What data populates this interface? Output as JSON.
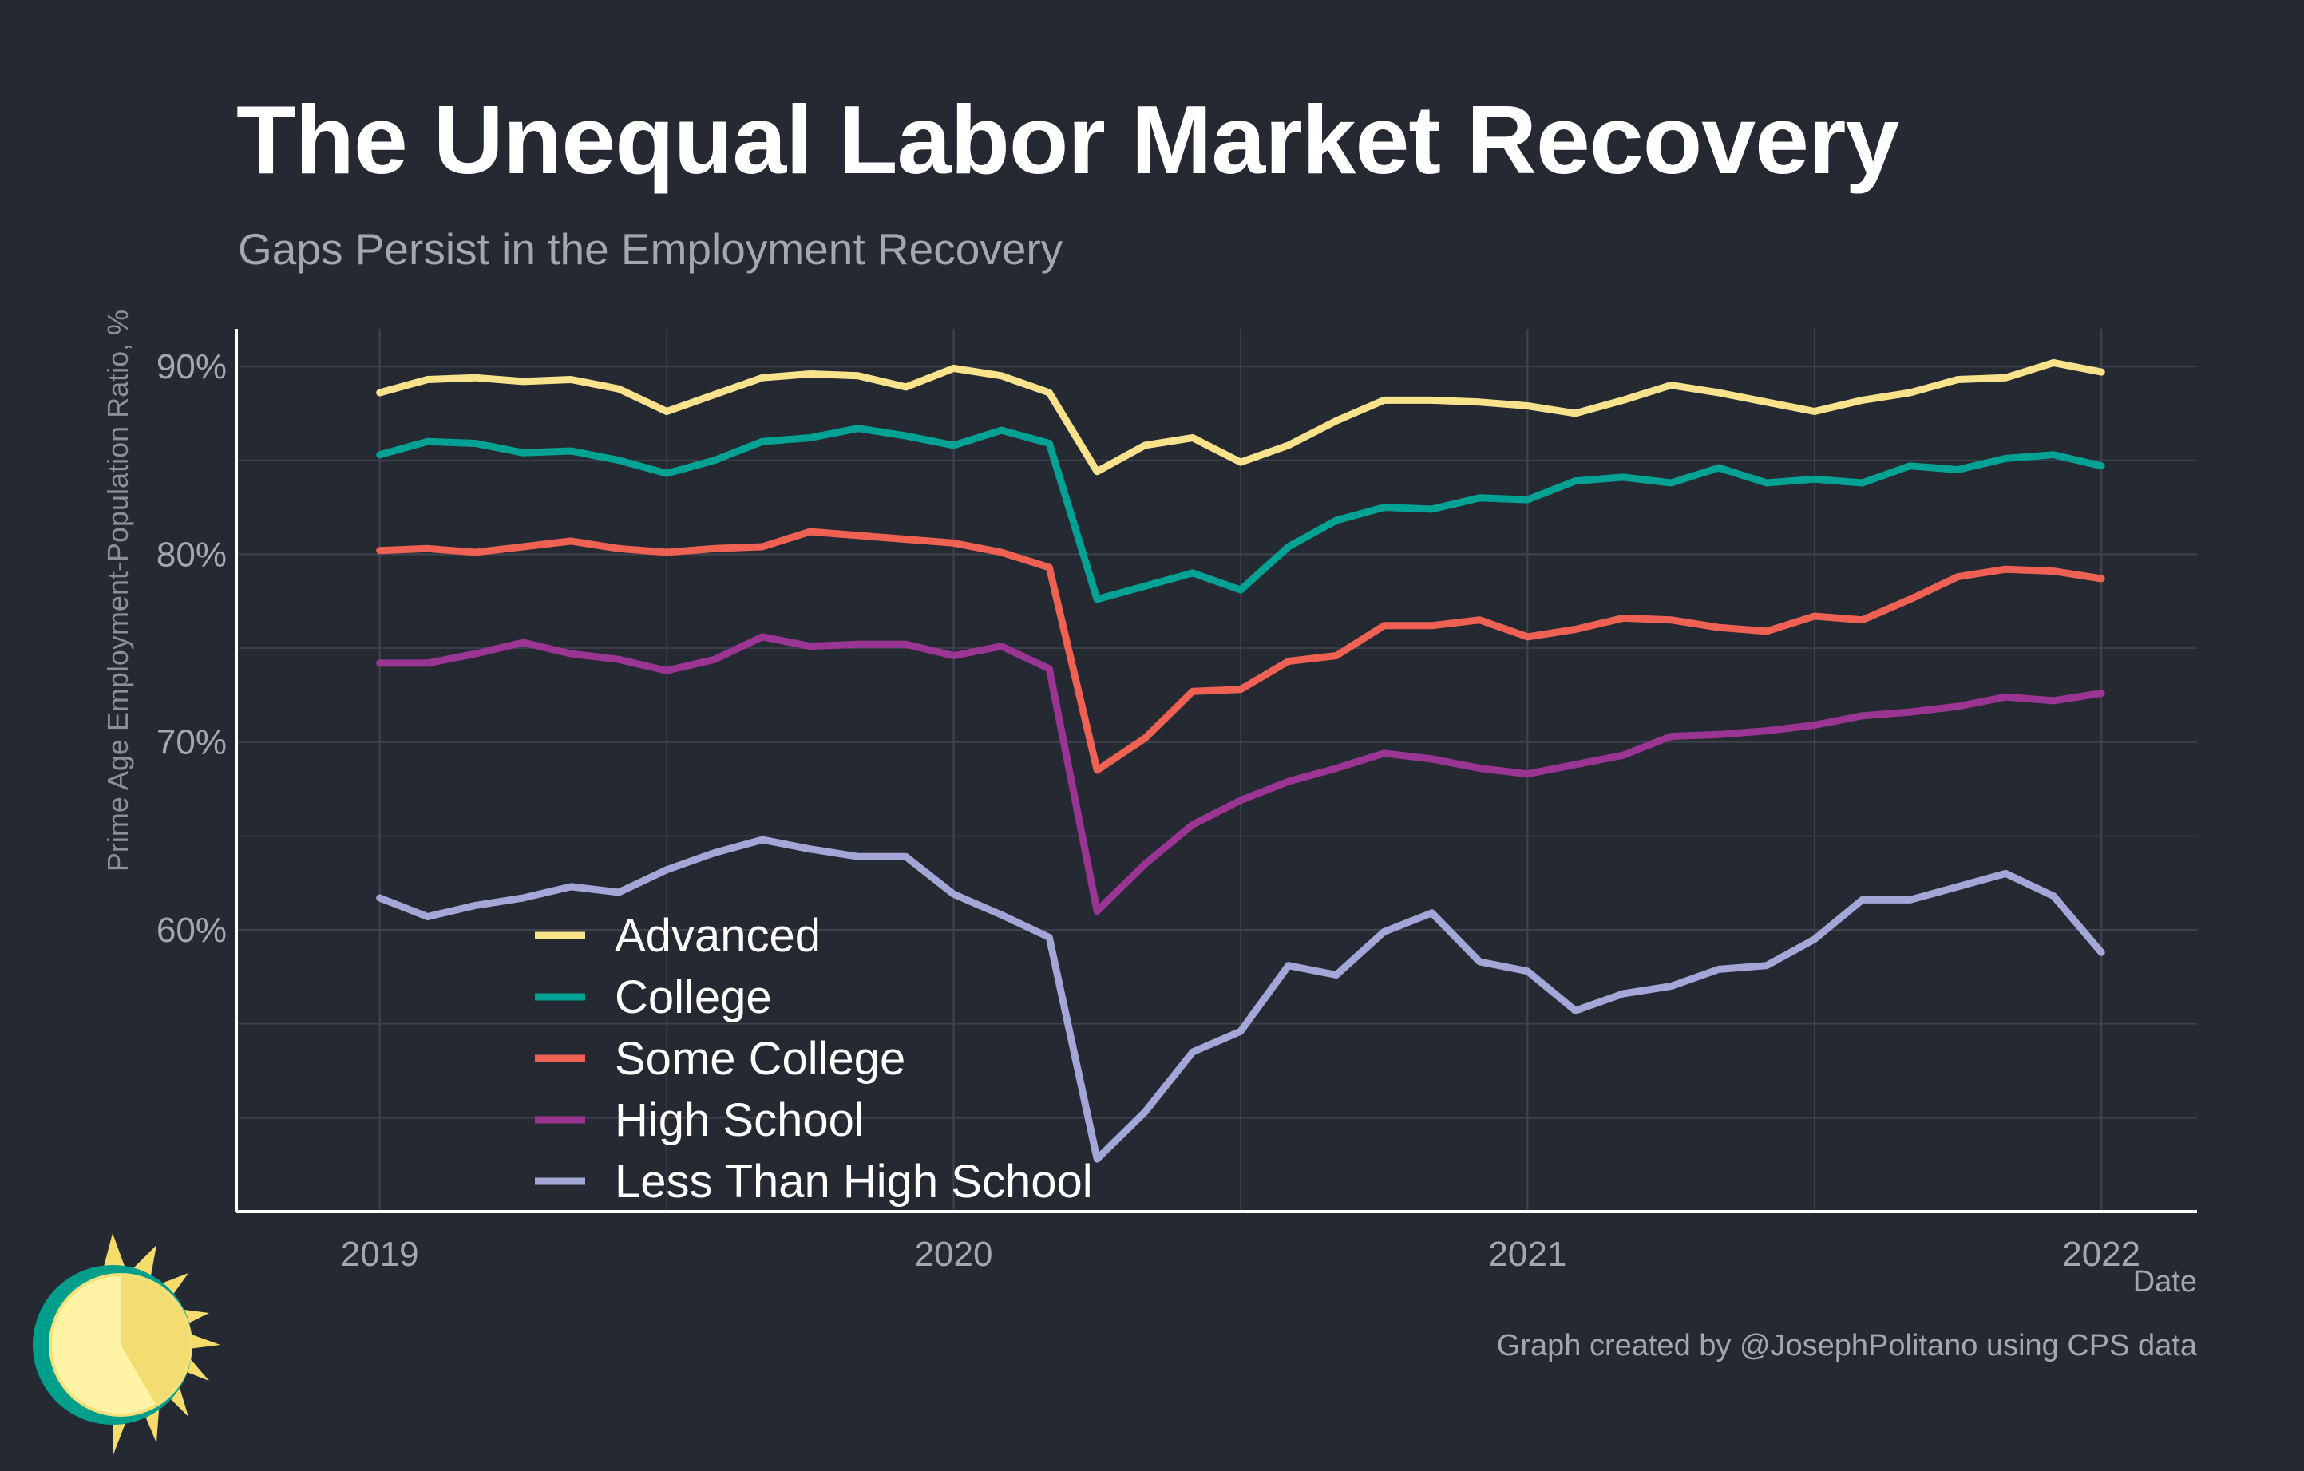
{
  "title": "The Unequal Labor Market Recovery",
  "subtitle": "Gaps Persist in the Employment Recovery",
  "caption": "Graph created by @JosephPolitano using CPS data",
  "colors": {
    "background": "#252932",
    "grid": "#3d424d",
    "axis": "#ffffff",
    "tick_text": "#a4a7ad"
  },
  "chart_data": {
    "type": "line",
    "title": "The Unequal Labor Market Recovery",
    "subtitle": "Gaps Persist in the Employment Recovery",
    "xlabel": "Date",
    "ylabel": "Prime Age Employment-Population Ratio, %",
    "xlim": [
      "2018-10",
      "2022-03"
    ],
    "ylim": [
      45,
      92
    ],
    "x_ticks": [
      {
        "x": "2019-01",
        "label": "2019"
      },
      {
        "x": "2020-01",
        "label": "2020"
      },
      {
        "x": "2021-01",
        "label": "2021"
      },
      {
        "x": "2022-01",
        "label": "2022"
      }
    ],
    "y_ticks": [
      {
        "y": 60,
        "label": "60%"
      },
      {
        "y": 70,
        "label": "70%"
      },
      {
        "y": 80,
        "label": "80%"
      },
      {
        "y": 90,
        "label": "90%"
      }
    ],
    "grid": true,
    "legend_position": "bottom-left",
    "x": [
      "2019-01",
      "2019-02",
      "2019-03",
      "2019-04",
      "2019-05",
      "2019-06",
      "2019-07",
      "2019-08",
      "2019-09",
      "2019-10",
      "2019-11",
      "2019-12",
      "2020-01",
      "2020-02",
      "2020-03",
      "2020-04",
      "2020-05",
      "2020-06",
      "2020-07",
      "2020-08",
      "2020-09",
      "2020-10",
      "2020-11",
      "2020-12",
      "2021-01",
      "2021-02",
      "2021-03",
      "2021-04",
      "2021-05",
      "2021-06",
      "2021-07",
      "2021-08",
      "2021-09",
      "2021-10",
      "2021-11",
      "2021-12",
      "2022-01"
    ],
    "series": [
      {
        "name": "Advanced",
        "color": "#f8e38c",
        "values": [
          88.6,
          89.3,
          89.4,
          89.2,
          89.3,
          88.8,
          87.6,
          88.5,
          89.4,
          89.6,
          89.5,
          88.9,
          89.9,
          89.5,
          88.6,
          84.4,
          85.8,
          86.2,
          84.9,
          85.8,
          87.1,
          88.2,
          88.2,
          88.1,
          87.9,
          87.5,
          88.2,
          89.0,
          88.6,
          88.1,
          87.6,
          88.2,
          88.6,
          89.3,
          89.4,
          90.2,
          89.7
        ]
      },
      {
        "name": "College",
        "color": "#00a294",
        "values": [
          85.3,
          86.0,
          85.9,
          85.4,
          85.5,
          85.0,
          84.3,
          85.0,
          86.0,
          86.2,
          86.7,
          86.3,
          85.8,
          86.6,
          85.9,
          77.6,
          78.3,
          79.0,
          78.1,
          80.4,
          81.8,
          82.5,
          82.4,
          83.0,
          82.9,
          83.9,
          84.1,
          83.8,
          84.6,
          83.8,
          84.0,
          83.8,
          84.7,
          84.5,
          85.1,
          85.3,
          84.7
        ]
      },
      {
        "name": "Some College",
        "color": "#ee6153",
        "values": [
          80.2,
          80.3,
          80.1,
          80.4,
          80.7,
          80.3,
          80.1,
          80.3,
          80.4,
          81.2,
          81.0,
          80.8,
          80.6,
          80.1,
          79.3,
          68.5,
          70.2,
          72.7,
          72.8,
          74.3,
          74.6,
          76.2,
          76.2,
          76.5,
          75.6,
          76.0,
          76.6,
          76.5,
          76.1,
          75.9,
          76.7,
          76.5,
          77.6,
          78.8,
          79.2,
          79.1,
          78.7
        ]
      },
      {
        "name": "High School",
        "color": "#9a3593",
        "values": [
          74.2,
          74.2,
          74.7,
          75.3,
          74.7,
          74.4,
          73.8,
          74.4,
          75.6,
          75.1,
          75.2,
          75.2,
          74.6,
          75.1,
          73.9,
          61.0,
          63.5,
          65.6,
          66.9,
          67.9,
          68.6,
          69.4,
          69.1,
          68.6,
          68.3,
          68.8,
          69.3,
          70.3,
          70.4,
          70.6,
          70.9,
          71.4,
          71.6,
          71.9,
          72.4,
          72.2,
          72.6
        ]
      },
      {
        "name": "Less Than High School",
        "color": "#a3a6d6",
        "values": [
          61.7,
          60.7,
          61.3,
          61.7,
          62.3,
          62.0,
          63.2,
          64.1,
          64.8,
          64.3,
          63.9,
          63.9,
          61.9,
          60.8,
          59.6,
          47.8,
          50.3,
          53.5,
          54.6,
          58.1,
          57.6,
          59.9,
          60.9,
          58.3,
          57.8,
          55.7,
          56.6,
          57.0,
          57.9,
          58.1,
          59.5,
          61.6,
          61.6,
          62.3,
          63.0,
          61.8,
          58.8
        ]
      }
    ]
  }
}
